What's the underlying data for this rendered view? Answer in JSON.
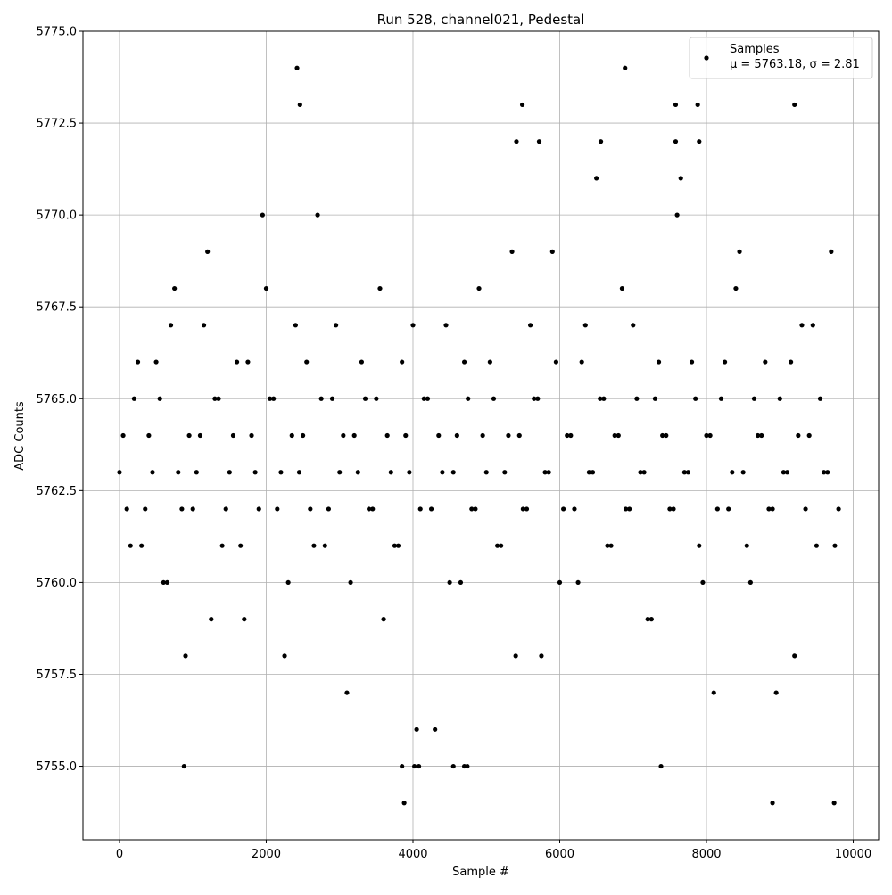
{
  "chart_data": {
    "type": "scatter",
    "title": "Run 528, channel021, Pedestal",
    "x_label": "Sample #",
    "y_label": "ADC Counts",
    "legend_note": "μ = 5763.18, σ = 2.81",
    "legend_position": "upper right",
    "grid": true,
    "xlim": [
      -498,
      10346
    ],
    "ylim": [
      5753,
      5775
    ],
    "xticks": [
      0,
      2000,
      4000,
      6000,
      8000,
      10000
    ],
    "yticks": [
      {
        "value": 5755,
        "label": "5755.0"
      },
      {
        "value": 5757.5,
        "label": "5757.5"
      },
      {
        "value": 5760,
        "label": "5760.0"
      },
      {
        "value": 5762.5,
        "label": "5762.5"
      },
      {
        "value": 5765,
        "label": "5765.0"
      },
      {
        "value": 5767.5,
        "label": "5767.5"
      },
      {
        "value": 5770,
        "label": "5770.0"
      },
      {
        "value": 5772.5,
        "label": "5772.5"
      },
      {
        "value": 5775,
        "label": "5775.0"
      }
    ],
    "x": [
      0,
      100,
      200,
      300,
      400,
      500,
      600,
      700,
      800,
      900,
      1000,
      1100,
      1200,
      1300,
      1400,
      1500,
      1600,
      1700,
      1800,
      1900,
      2000,
      2100,
      2200,
      2300,
      2400,
      2500,
      2600,
      2700,
      2800,
      2900,
      3000,
      3100,
      3200,
      3300,
      3400,
      3500,
      3600,
      3700,
      3800,
      3900,
      4000,
      4100,
      4200,
      4300,
      4400,
      4500,
      4600,
      4700,
      4800,
      4900,
      5000,
      5100,
      5200,
      5300,
      5400,
      5500,
      5600,
      5700,
      5800,
      5900,
      6000,
      6100,
      6200,
      6300,
      6400,
      6500,
      6600,
      6700,
      6800,
      6900,
      7000,
      7100,
      7200,
      7300,
      7400,
      7500,
      7600,
      7700,
      7800,
      7900,
      8000,
      8100,
      8200,
      8300,
      8400,
      8500,
      8600,
      8700,
      8800,
      8900,
      9000,
      9100,
      9200,
      9300,
      9400,
      9500,
      9600,
      9700,
      9800,
      50,
      150,
      250,
      350,
      450,
      550,
      650,
      750,
      850,
      950,
      1050,
      1150,
      1250,
      1350,
      1450,
      1550,
      1650,
      1750,
      1850,
      1950,
      2050,
      2150,
      2250,
      2350,
      2450,
      2550,
      2650,
      2750,
      2850,
      2950,
      3050,
      3150,
      3250,
      3350,
      3450,
      3550,
      3650,
      3750,
      3850,
      3950,
      4050,
      4150,
      4250,
      4350,
      4450,
      4550,
      4650,
      4750,
      4850,
      4950,
      5050,
      5150,
      5250,
      5350,
      5450,
      5550,
      5650,
      5750,
      5850,
      5950,
      6050,
      6150,
      6250,
      6350,
      6450,
      6550,
      6650,
      6750,
      6850,
      6950,
      7050,
      7150,
      7250,
      7350,
      7450,
      7550,
      7650,
      7750,
      7850,
      7950,
      8050,
      8150,
      8250,
      8350,
      8450,
      8550,
      8650,
      8750,
      8850,
      8950,
      9050,
      9150,
      9250,
      9350,
      9450,
      9550,
      9650,
      9750,
      2420,
      2460,
      6890,
      5490,
      7580,
      7880,
      9200,
      880,
      3850,
      4020,
      4080,
      4550,
      4700,
      4740,
      7380,
      3880,
      8900,
      9740,
      5410,
      5720,
      6560,
      7580,
      7900
    ],
    "series": [
      {
        "name": "Samples",
        "color": "#000000",
        "values": [
          5763,
          5762,
          5765,
          5761,
          5764,
          5766,
          5760,
          5767,
          5763,
          5758,
          5762,
          5764,
          5769,
          5765,
          5761,
          5763,
          5766,
          5759,
          5764,
          5762,
          5768,
          5765,
          5763,
          5760,
          5767,
          5764,
          5762,
          5770,
          5761,
          5765,
          5763,
          5757,
          5764,
          5766,
          5762,
          5765,
          5759,
          5763,
          5761,
          5764,
          5767,
          5762,
          5765,
          5756,
          5763,
          5760,
          5764,
          5766,
          5762,
          5768,
          5763,
          5765,
          5761,
          5764,
          5758,
          5762,
          5767,
          5765,
          5763,
          5769,
          5760,
          5764,
          5762,
          5766,
          5763,
          5771,
          5765,
          5761,
          5764,
          5762,
          5767,
          5763,
          5759,
          5765,
          5764,
          5762,
          5770,
          5763,
          5766,
          5761,
          5764,
          5757,
          5765,
          5762,
          5768,
          5763,
          5760,
          5764,
          5766,
          5762,
          5765,
          5763,
          5758,
          5767,
          5764,
          5761,
          5763,
          5769,
          5762,
          5764,
          5761,
          5766,
          5762,
          5763,
          5765,
          5760,
          5768,
          5762,
          5764,
          5763,
          5767,
          5759,
          5765,
          5762,
          5764,
          5761,
          5766,
          5763,
          5770,
          5765,
          5762,
          5758,
          5764,
          5763,
          5766,
          5761,
          5765,
          5762,
          5767,
          5764,
          5760,
          5763,
          5765,
          5762,
          5768,
          5764,
          5761,
          5766,
          5763,
          5756,
          5765,
          5762,
          5764,
          5767,
          5763,
          5760,
          5765,
          5762,
          5764,
          5766,
          5761,
          5763,
          5769,
          5764,
          5762,
          5765,
          5758,
          5763,
          5766,
          5762,
          5764,
          5760,
          5767,
          5763,
          5765,
          5761,
          5764,
          5768,
          5762,
          5765,
          5763,
          5759,
          5766,
          5764,
          5762,
          5771,
          5763,
          5765,
          5760,
          5764,
          5762,
          5766,
          5763,
          5769,
          5761,
          5765,
          5764,
          5762,
          5757,
          5763,
          5766,
          5764,
          5762,
          5767,
          5765,
          5763,
          5761,
          5774,
          5773,
          5774,
          5773,
          5773,
          5773,
          5773,
          5755,
          5755,
          5755,
          5755,
          5755,
          5755,
          5755,
          5755,
          5754,
          5754,
          5754,
          5772,
          5772,
          5772,
          5772,
          5772
        ]
      }
    ]
  }
}
